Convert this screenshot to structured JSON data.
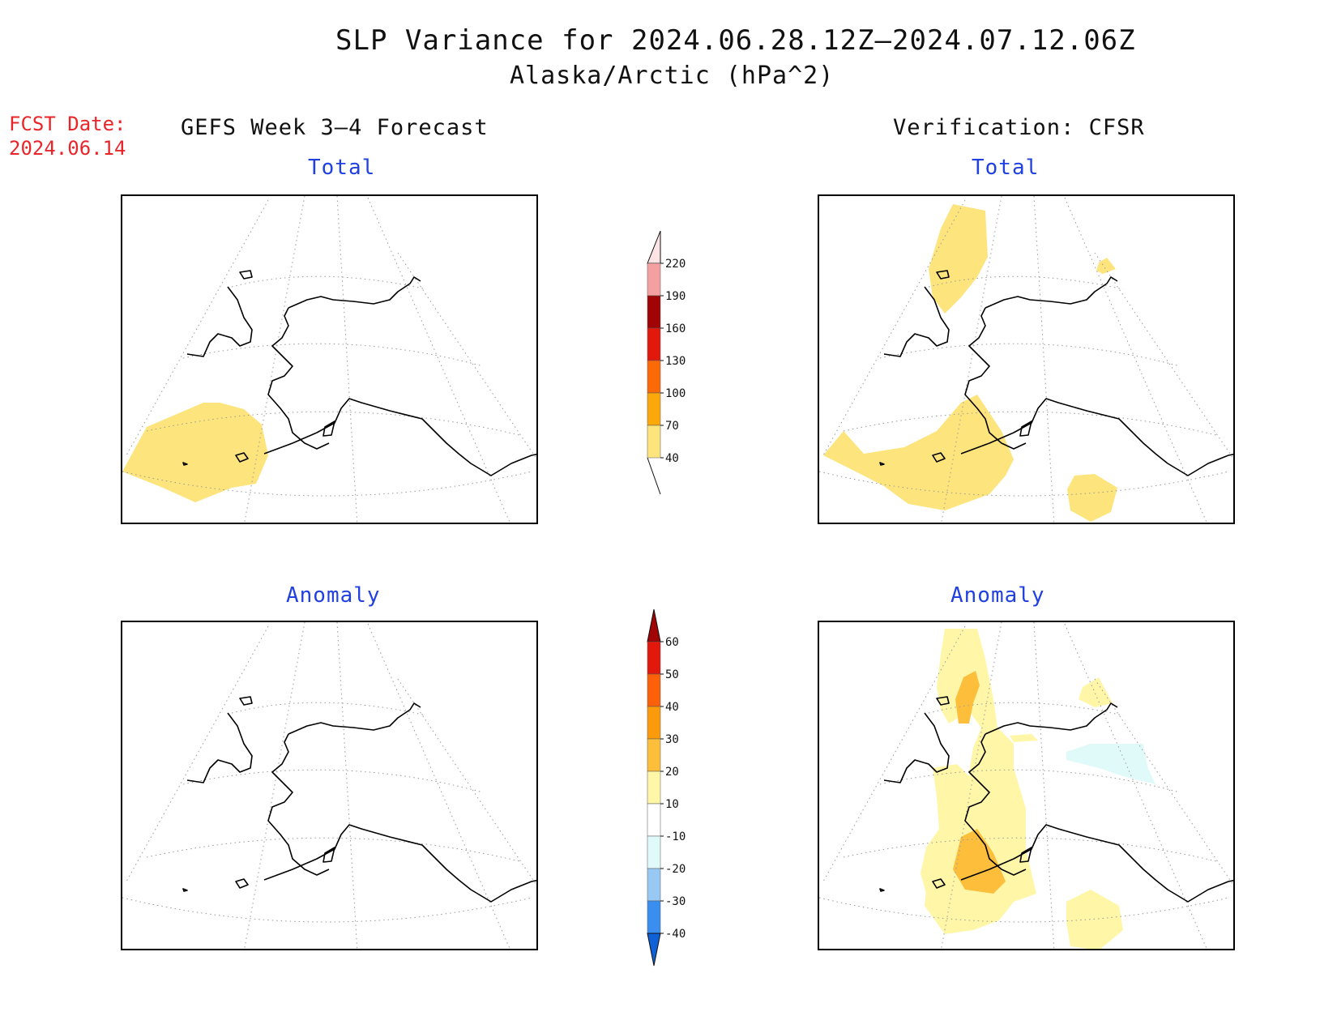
{
  "title": "SLP Variance for 2024.06.28.12Z–2024.07.12.06Z",
  "subtitle": "Alaska/Arctic (hPa^2)",
  "fcst_date": {
    "label": "FCST Date:",
    "value": "2024.06.14"
  },
  "columns": {
    "left_header": "GEFS Week 3–4 Forecast",
    "right_header": "Verification: CFSR"
  },
  "panels": {
    "forecast_total": {
      "label": "Total"
    },
    "verification_total": {
      "label": "Total"
    },
    "forecast_anomaly": {
      "label": "Anomaly"
    },
    "verification_anomaly": {
      "label": "Anomaly"
    }
  },
  "colorbars": {
    "total": {
      "levels": [
        "40",
        "70",
        "100",
        "130",
        "160",
        "190",
        "220"
      ],
      "colors": [
        "#fde47c",
        "#fba90a",
        "#fc6a08",
        "#e2180c",
        "#a00404",
        "#f4a0a0",
        "#fde4e4"
      ]
    },
    "anomaly": {
      "levels": [
        "-40",
        "-30",
        "-20",
        "-10",
        "10",
        "20",
        "30",
        "40",
        "50",
        "60"
      ],
      "colors": [
        "#1060d8",
        "#3a8ef0",
        "#98c8f4",
        "#e0fafa",
        "#ffffff",
        "#fff6a8",
        "#fdbe3c",
        "#fb9a0a",
        "#fc6008",
        "#e2180c",
        "#a00404"
      ]
    }
  },
  "map_features": {
    "coastline_color": "#000000",
    "graticule": "dotted"
  }
}
